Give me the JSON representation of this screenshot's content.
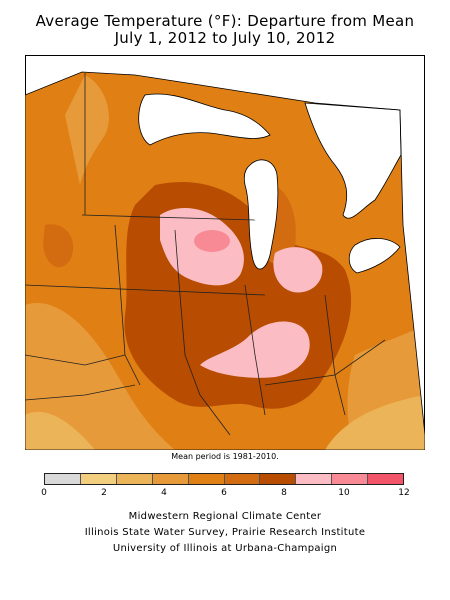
{
  "title_line1": "Average Temperature (°F): Departure from Mean",
  "title_line2": "July 1, 2012 to July 10, 2012",
  "note": "Mean period is 1981-2010.",
  "legend": {
    "colors": [
      "#d9d9d9",
      "#f2cf7e",
      "#ecb458",
      "#e79a3a",
      "#e07f14",
      "#d36b10",
      "#b84c00",
      "#fbbcc4",
      "#f78a95",
      "#f25568"
    ],
    "ticks": [
      "0",
      "2",
      "4",
      "6",
      "8",
      "10",
      "12"
    ]
  },
  "credits": {
    "line1": "Midwestern Regional Climate Center",
    "line2": "Illinois State Water Survey, Prairie Research Institute",
    "line3": "University of Illinois at Urbana-Champaign"
  }
}
